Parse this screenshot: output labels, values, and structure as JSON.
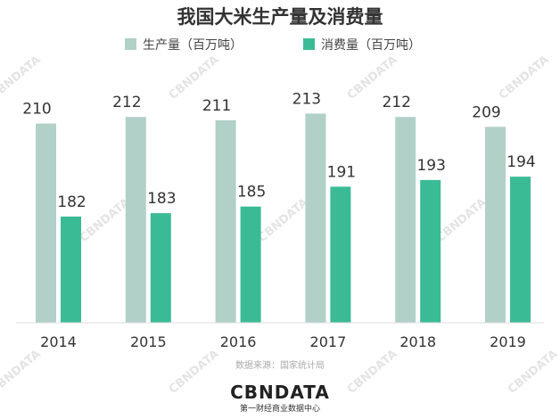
{
  "colors": {
    "production": "#b0d0c8",
    "consumption": "#3abb96",
    "title": "#333333",
    "axis": "#dddddd"
  },
  "chart_data": {
    "type": "bar",
    "title": "我国大米生产量及消费量",
    "xlabel": "",
    "ylabel": "",
    "ylim": [
      0,
      215
    ],
    "grid": false,
    "legend_position": "top",
    "categories": [
      "2014",
      "2015",
      "2016",
      "2017",
      "2018",
      "2019"
    ],
    "series": [
      {
        "name": "生产量（百万吨）",
        "values": [
          210,
          212,
          211,
          213,
          212,
          209
        ],
        "color": "#b0d0c8"
      },
      {
        "name": "消费量（百万吨）",
        "values": [
          182,
          183,
          185,
          191,
          193,
          194
        ],
        "color": "#3abb96"
      }
    ]
  },
  "footer": {
    "source": "数据来源：国家统计局",
    "logo": "CBNDATA",
    "logo_sub": "第一财经商业数据中心"
  },
  "watermark": {
    "text": "CBNDATA"
  }
}
